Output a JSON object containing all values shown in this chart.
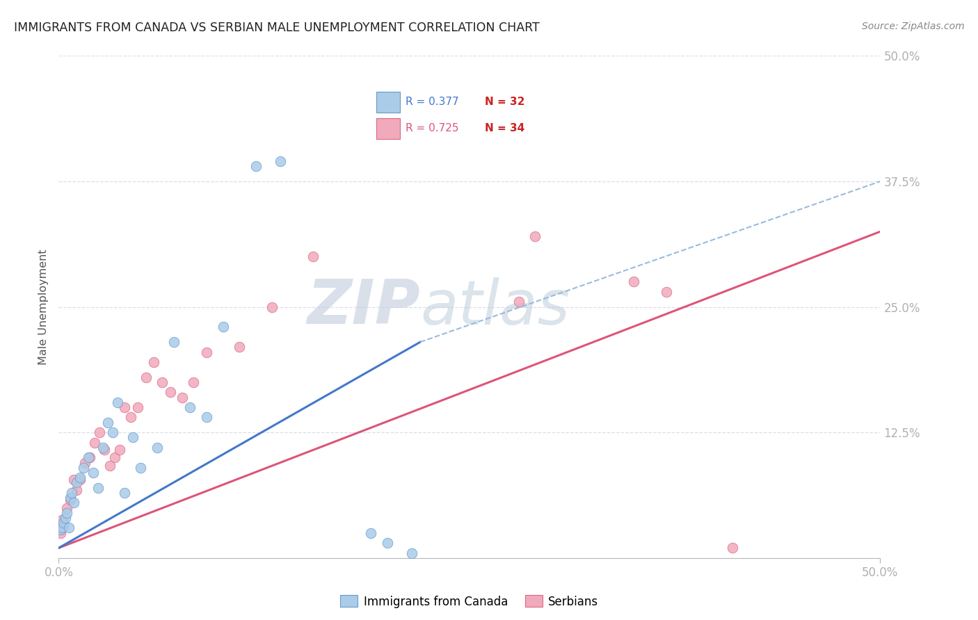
{
  "title": "IMMIGRANTS FROM CANADA VS SERBIAN MALE UNEMPLOYMENT CORRELATION CHART",
  "source": "Source: ZipAtlas.com",
  "ylabel": "Male Unemployment",
  "xlim": [
    0,
    0.5
  ],
  "ylim": [
    0,
    0.5
  ],
  "xticks": [
    0.0,
    0.5
  ],
  "xticklabels": [
    "0.0%",
    "50.0%"
  ],
  "yticks": [
    0.0,
    0.125,
    0.25,
    0.375,
    0.5
  ],
  "yticklabels": [
    "",
    "12.5%",
    "25.0%",
    "37.5%",
    "50.0%"
  ],
  "legend_R_blue": "R = 0.377",
  "legend_N_blue": "N = 32",
  "legend_R_pink": "R = 0.725",
  "legend_N_pink": "N = 34",
  "blue_scatter_color": "#aacce8",
  "blue_edge_color": "#6699cc",
  "pink_scatter_color": "#f0aabb",
  "pink_edge_color": "#dd6688",
  "blue_line_color": "#4477cc",
  "pink_line_color": "#dd5577",
  "blue_dash_color": "#99bbdd",
  "grid_color": "#ddddee",
  "bg_color": "#ffffff",
  "title_color": "#222222",
  "source_color": "#888888",
  "tick_color": "#5588cc",
  "ylabel_color": "#555555",
  "blue_line_start_x": 0.0,
  "blue_line_start_y": 0.01,
  "blue_line_solid_end_x": 0.22,
  "blue_line_solid_end_y": 0.215,
  "blue_line_dash_end_x": 0.5,
  "blue_line_dash_end_y": 0.375,
  "pink_line_start_x": 0.0,
  "pink_line_start_y": 0.01,
  "pink_line_end_x": 0.5,
  "pink_line_end_y": 0.325,
  "canada_x": [
    0.001,
    0.002,
    0.003,
    0.004,
    0.005,
    0.006,
    0.007,
    0.008,
    0.009,
    0.011,
    0.013,
    0.015,
    0.018,
    0.021,
    0.024,
    0.027,
    0.03,
    0.033,
    0.036,
    0.04,
    0.045,
    0.05,
    0.06,
    0.07,
    0.08,
    0.09,
    0.1,
    0.12,
    0.135,
    0.19,
    0.2,
    0.215
  ],
  "canada_y": [
    0.028,
    0.03,
    0.035,
    0.04,
    0.045,
    0.03,
    0.06,
    0.065,
    0.055,
    0.075,
    0.08,
    0.09,
    0.1,
    0.085,
    0.07,
    0.11,
    0.135,
    0.125,
    0.155,
    0.065,
    0.12,
    0.09,
    0.11,
    0.215,
    0.15,
    0.14,
    0.23,
    0.39,
    0.395,
    0.025,
    0.015,
    0.005
  ],
  "serbian_x": [
    0.001,
    0.002,
    0.003,
    0.005,
    0.007,
    0.009,
    0.011,
    0.013,
    0.016,
    0.019,
    0.022,
    0.025,
    0.028,
    0.031,
    0.034,
    0.037,
    0.04,
    0.044,
    0.048,
    0.053,
    0.058,
    0.063,
    0.068,
    0.075,
    0.082,
    0.09,
    0.11,
    0.13,
    0.155,
    0.28,
    0.35,
    0.37,
    0.29,
    0.41
  ],
  "serbian_y": [
    0.025,
    0.038,
    0.032,
    0.05,
    0.058,
    0.078,
    0.068,
    0.078,
    0.095,
    0.1,
    0.115,
    0.125,
    0.108,
    0.092,
    0.1,
    0.108,
    0.15,
    0.14,
    0.15,
    0.18,
    0.195,
    0.175,
    0.165,
    0.16,
    0.175,
    0.205,
    0.21,
    0.25,
    0.3,
    0.255,
    0.275,
    0.265,
    0.32,
    0.01
  ],
  "watermark_zip_color": "#c0ccdd",
  "watermark_atlas_color": "#b8c8d8"
}
